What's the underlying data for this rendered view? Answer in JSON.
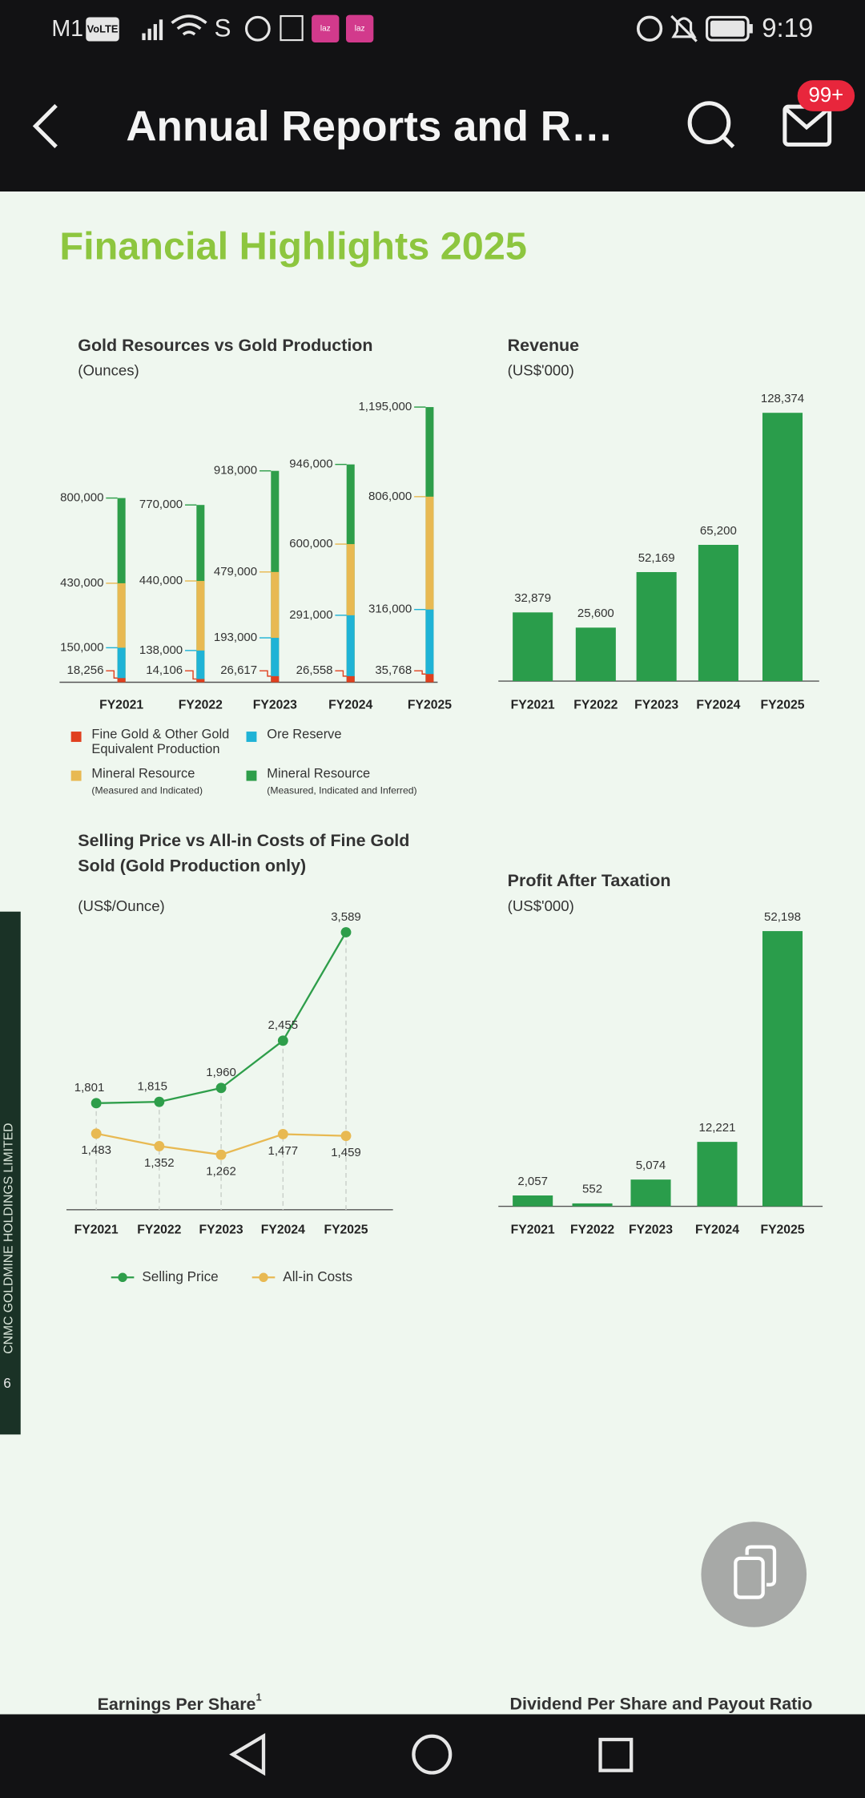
{
  "status_bar": {
    "carrier": "M1",
    "volte": "VoLTE",
    "app_letter": "S",
    "notification_icons": [
      "laz",
      "laz"
    ],
    "time": "9:19"
  },
  "header": {
    "title": "Annual Reports and R…",
    "badge": "99+"
  },
  "page": {
    "title": "Financial Highlights 2025",
    "side_tab": "CNMC GOLDMINE HOLDINGS LIMITED",
    "page_number": "6",
    "next_titles": [
      {
        "text": "Earnings Per Share",
        "superscript": "1"
      },
      {
        "text": "Dividend Per Share and Payout Ratio"
      }
    ]
  },
  "chart_data": [
    {
      "type": "bar",
      "overlap": true,
      "title": "Gold Resources vs Gold Production",
      "subtitle": "(Ounces)",
      "categories": [
        "FY2021",
        "FY2022",
        "FY2023",
        "FY2024",
        "FY2025"
      ],
      "series": [
        {
          "name": "Fine Gold & Other Gold Equivalent Production",
          "color": "#e0401f",
          "values": [
            18256,
            14106,
            26617,
            26558,
            35768
          ],
          "value_labels": [
            "18,256",
            "14,106",
            "26,617",
            "26,558",
            "35,768"
          ]
        },
        {
          "name": "Ore Reserve",
          "color": "#1fb3d6",
          "values": [
            150000,
            138000,
            193000,
            291000,
            316000
          ],
          "value_labels": [
            "150,000",
            "138,000",
            "193,000",
            "291,000",
            "316,000"
          ]
        },
        {
          "name": "Mineral Resource",
          "qualifier": "(Measured and Indicated)",
          "color": "#e8b952",
          "values": [
            430000,
            440000,
            479000,
            600000,
            806000
          ],
          "value_labels": [
            "430,000",
            "440,000",
            "479,000",
            "600,000",
            "806,000"
          ]
        },
        {
          "name": "Mineral Resource",
          "qualifier": "(Measured, Indicated and Inferred)",
          "color": "#2e9e4a",
          "values": [
            800000,
            770000,
            918000,
            946000,
            1195000
          ],
          "value_labels": [
            "800,000",
            "770,000",
            "918,000",
            "946,000",
            "1,195,000"
          ]
        }
      ]
    },
    {
      "type": "bar",
      "title": "Revenue",
      "subtitle": "(US$'000)",
      "categories": [
        "FY2021",
        "FY2022",
        "FY2023",
        "FY2024",
        "FY2025"
      ],
      "values": [
        32879,
        25600,
        52169,
        65200,
        128374
      ],
      "value_labels": [
        "32,879",
        "25,600",
        "52,169",
        "65,200",
        "128,374"
      ],
      "color": "#2a9d4b"
    },
    {
      "type": "line",
      "title": "Selling Price vs All-in Costs of Fine Gold Sold (Gold Production only)",
      "subtitle": "(US$/Ounce)",
      "categories": [
        "FY2021",
        "FY2022",
        "FY2023",
        "FY2024",
        "FY2025"
      ],
      "series": [
        {
          "name": "Selling Price",
          "color": "#2e9e4a",
          "values": [
            1801,
            1815,
            1960,
            2455,
            3589
          ],
          "value_labels": [
            "1,801",
            "1,815",
            "1,960",
            "2,455",
            "3,589"
          ]
        },
        {
          "name": "All-in Costs",
          "color": "#e8b952",
          "values": [
            1483,
            1352,
            1262,
            1477,
            1459
          ],
          "value_labels": [
            "1,483",
            "1,352",
            "1,262",
            "1,477",
            "1,459"
          ]
        }
      ]
    },
    {
      "type": "bar",
      "title": "Profit After Taxation",
      "subtitle": "(US$'000)",
      "categories": [
        "FY2021",
        "FY2022",
        "FY2023",
        "FY2024",
        "FY2025"
      ],
      "values": [
        2057,
        552,
        5074,
        12221,
        52198
      ],
      "value_labels": [
        "2,057",
        "552",
        "5,074",
        "12,221",
        "52,198"
      ],
      "color": "#2a9d4b"
    }
  ]
}
